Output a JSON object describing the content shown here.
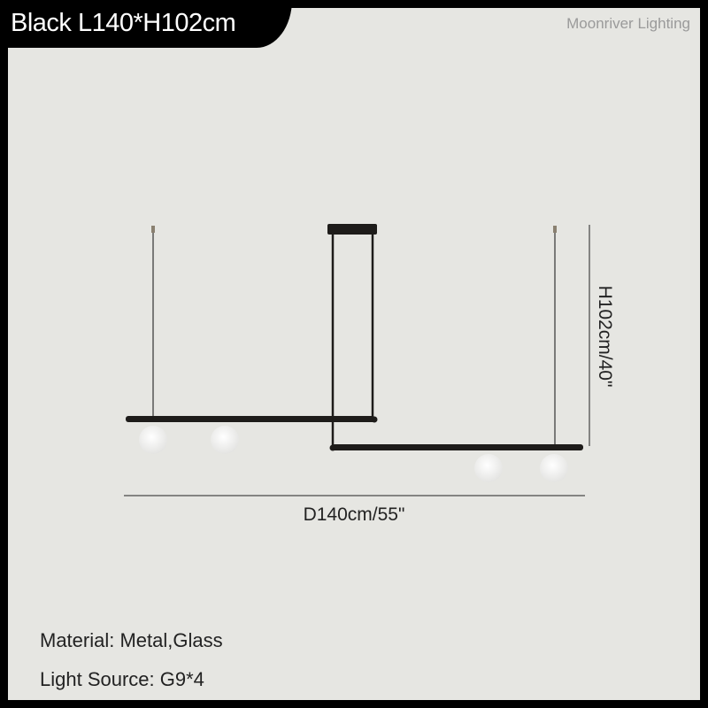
{
  "header": {
    "title": "Black L140*H102cm",
    "brand": "Moonriver Lighting"
  },
  "dimensions": {
    "width": "D140cm/55\"",
    "height": "H102cm/40\""
  },
  "specs": {
    "material": "Material: Metal,Glass",
    "light_source": "Light Source: G9*4"
  },
  "colors": {
    "frame": "#000000",
    "background": "#e6e6e2",
    "fixture": "#1e1c1a",
    "globe": "#fafafa"
  }
}
